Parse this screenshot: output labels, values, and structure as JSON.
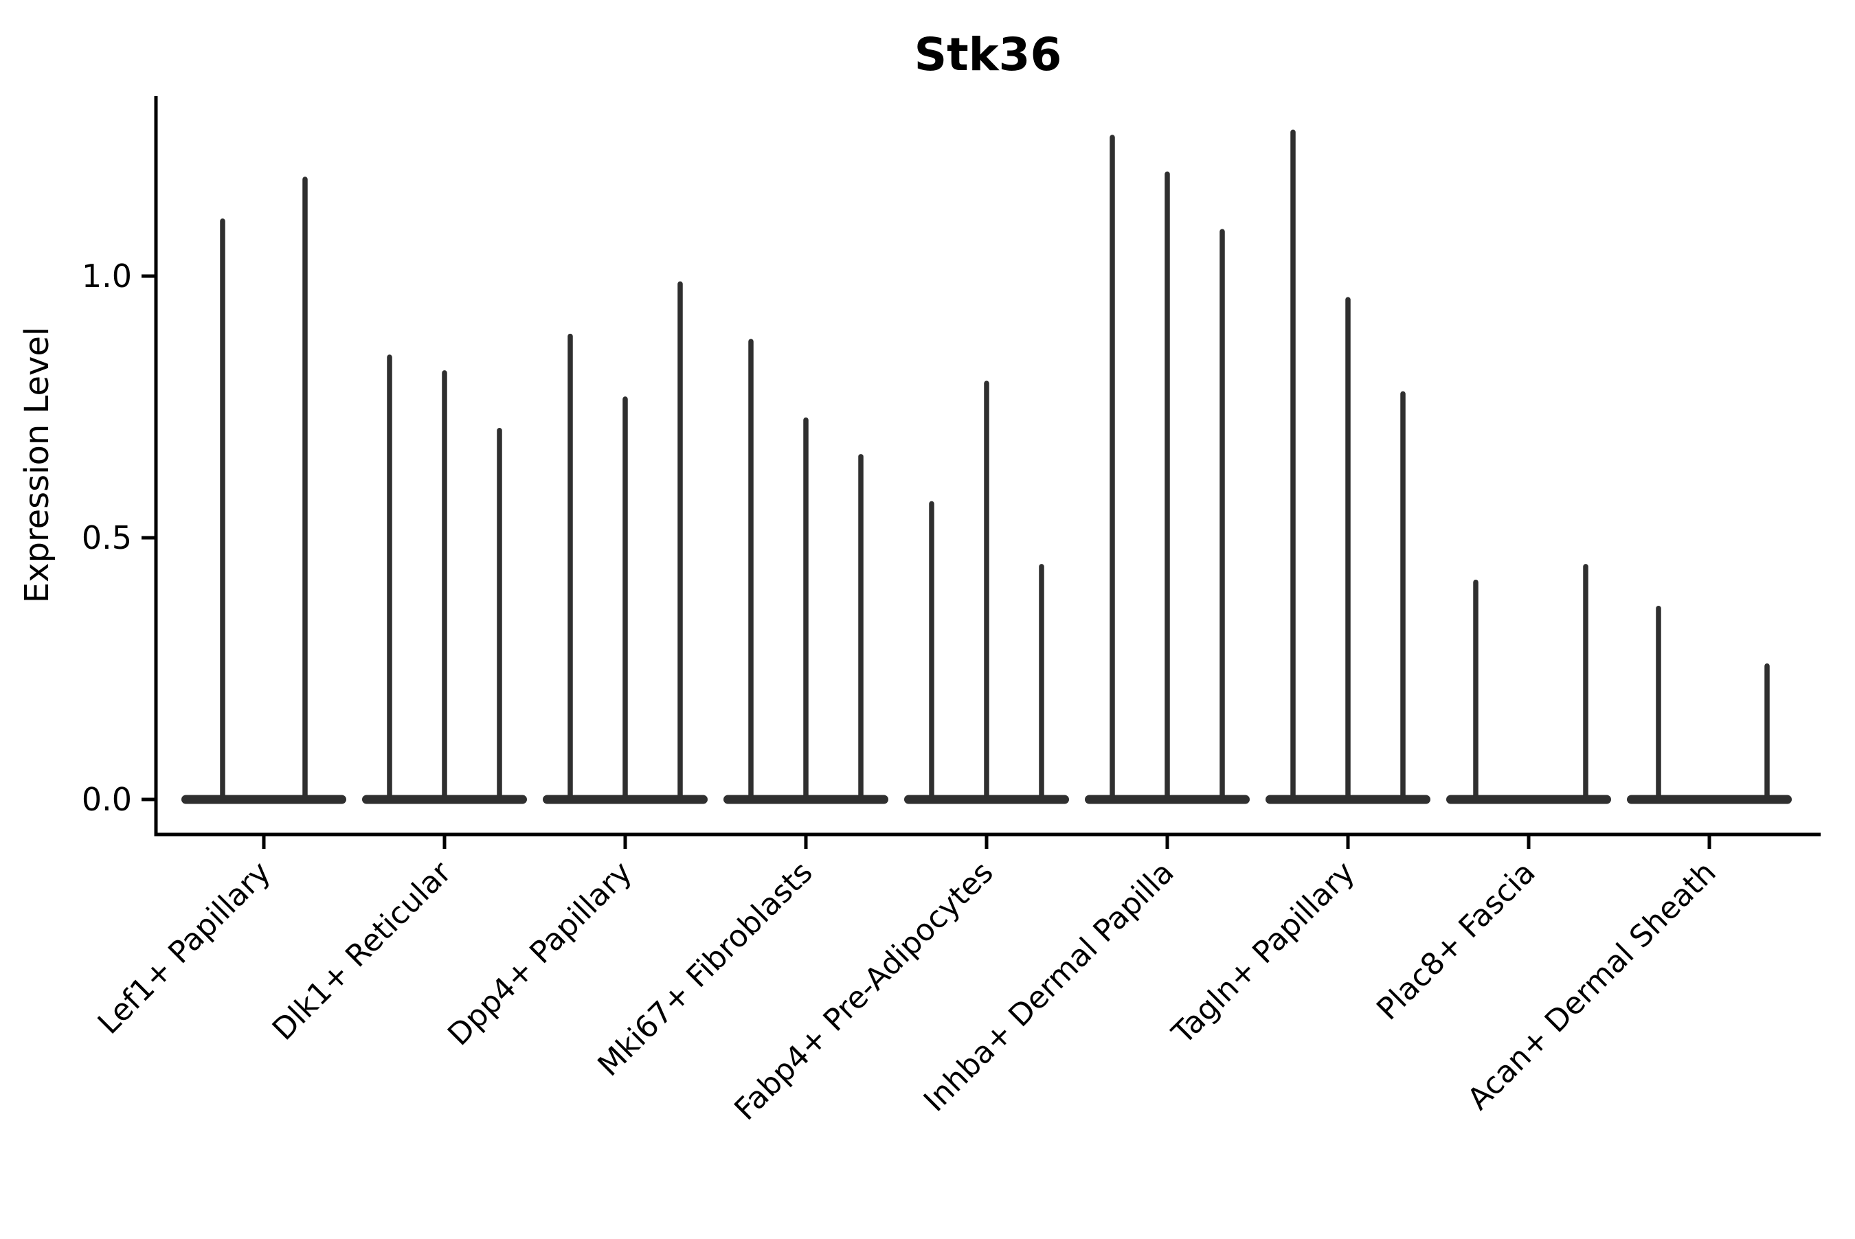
{
  "chart_data": {
    "type": "violin",
    "title": "Stk36",
    "xlabel": "",
    "ylabel": "Expression Level",
    "ylim": [
      0,
      1.34
    ],
    "grid": false,
    "legend": false,
    "ytick_values": [
      0.0,
      0.5,
      1.0
    ],
    "ytick_labels": [
      "0.0",
      "0.5",
      "1.0"
    ],
    "violin_color": "#2f2f2f",
    "axis_color": "#000000",
    "note": "sparse expression violins: flat body at 0 with thin spike to max expression; dx = dodge offset of each sub-violin from category center (px)",
    "categories": [
      {
        "label": "Lef1+ Papillary",
        "violins": [
          {
            "dx": -60,
            "max": 1.11
          },
          {
            "dx": 60,
            "max": 1.19
          }
        ]
      },
      {
        "label": "Dlk1+ Reticular",
        "violins": [
          {
            "dx": -80,
            "max": 0.85
          },
          {
            "dx": 0,
            "max": 0.82
          },
          {
            "dx": 80,
            "max": 0.71
          }
        ]
      },
      {
        "label": "Dpp4+ Papillary",
        "violins": [
          {
            "dx": -80,
            "max": 0.89
          },
          {
            "dx": 0,
            "max": 0.77
          },
          {
            "dx": 80,
            "max": 0.99
          }
        ]
      },
      {
        "label": "Mki67+ Fibroblasts",
        "violins": [
          {
            "dx": -80,
            "max": 0.88
          },
          {
            "dx": 0,
            "max": 0.73
          },
          {
            "dx": 80,
            "max": 0.66
          }
        ]
      },
      {
        "label": "Fabp4+ Pre-Adipocytes",
        "violins": [
          {
            "dx": -80,
            "max": 0.57
          },
          {
            "dx": 0,
            "max": 0.8
          },
          {
            "dx": 80,
            "max": 0.45
          }
        ]
      },
      {
        "label": "Inhba+ Dermal Papilla",
        "violins": [
          {
            "dx": -80,
            "max": 1.27
          },
          {
            "dx": 0,
            "max": 1.2
          },
          {
            "dx": 80,
            "max": 1.09
          }
        ]
      },
      {
        "label": "Tagln+ Papillary",
        "violins": [
          {
            "dx": -80,
            "max": 1.28
          },
          {
            "dx": 0,
            "max": 0.96
          },
          {
            "dx": 80,
            "max": 0.78
          }
        ]
      },
      {
        "label": "Plac8+ Fascia",
        "violins": [
          {
            "dx": -77,
            "max": 0.42
          },
          {
            "dx": 83,
            "max": 0.45
          }
        ]
      },
      {
        "label": "Acan+ Dermal Sheath",
        "violins": [
          {
            "dx": -74,
            "max": 0.37
          },
          {
            "dx": 84,
            "max": 0.26
          }
        ]
      }
    ]
  }
}
